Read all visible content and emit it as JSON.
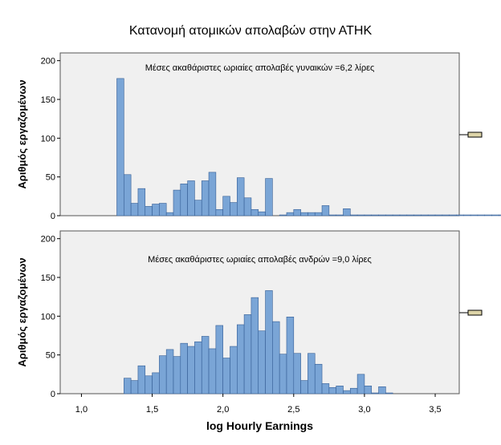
{
  "chart_title": "Κατανομή ατομικών απολαβών στην ΑΤΗΚ",
  "chart_data": [
    {
      "type": "bar",
      "panel": "top",
      "annotation": "Μέσες ακαθάριστες ωριαίες απολαβές γυναικών =6,2 λίρες",
      "ylabel": "Αριθμός εργαζομένων",
      "xlabel": "",
      "xlim": [
        0.85,
        3.67
      ],
      "ylim": [
        0,
        210
      ],
      "yticks": [
        "0",
        "50",
        "100",
        "150",
        "200"
      ],
      "ytick_values": [
        0,
        50,
        100,
        150,
        200
      ],
      "bin_start": 1.25,
      "bin_width": 0.05,
      "values": [
        177,
        53,
        16,
        35,
        12,
        15,
        16,
        4,
        33,
        41,
        45,
        20,
        45,
        56,
        8,
        25,
        17,
        49,
        23,
        8,
        5,
        48,
        0,
        1,
        4,
        8,
        4,
        4,
        4,
        13,
        1,
        1,
        9,
        1,
        1,
        1,
        1,
        1,
        1,
        1,
        1,
        1,
        1,
        1,
        1,
        1,
        1,
        1,
        1,
        1,
        1,
        1,
        1,
        1,
        1,
        1,
        1,
        1,
        1,
        1,
        1,
        1,
        1,
        1,
        1,
        1,
        1,
        1,
        1,
        1,
        1,
        1,
        1,
        1,
        1,
        1,
        1,
        1,
        1,
        1,
        1
      ],
      "bar_color": "#7aa5d6",
      "edge_color": "#355e95",
      "background": "#f0f0f0"
    },
    {
      "type": "bar",
      "panel": "bottom",
      "annotation": "Μέσες ακαθάριστες ωριαίες απολαβές ανδρών =9,0 λίρες",
      "ylabel": "Αριθμός εργαζομένων",
      "xlabel": "log Hourly Earnings",
      "xlim": [
        0.85,
        3.67
      ],
      "ylim": [
        0,
        210
      ],
      "yticks": [
        "0",
        "50",
        "100",
        "150",
        "200"
      ],
      "ytick_values": [
        0,
        50,
        100,
        150,
        200
      ],
      "xticks": [
        "1,0",
        "1,5",
        "2,0",
        "2,5",
        "3,0",
        "3,5"
      ],
      "xtick_values": [
        1.0,
        1.5,
        2.0,
        2.5,
        3.0,
        3.5
      ],
      "bin_start": 1.3,
      "bin_width": 0.05,
      "values": [
        20,
        17,
        36,
        23,
        27,
        49,
        57,
        48,
        65,
        61,
        67,
        74,
        58,
        88,
        46,
        61,
        89,
        102,
        124,
        81,
        133,
        93,
        51,
        99,
        52,
        17,
        52,
        38,
        13,
        8,
        10,
        4,
        7,
        25,
        10,
        1,
        9,
        1
      ],
      "bar_color": "#7aa5d6",
      "edge_color": "#355e95",
      "background": "#f0f0f0"
    }
  ]
}
